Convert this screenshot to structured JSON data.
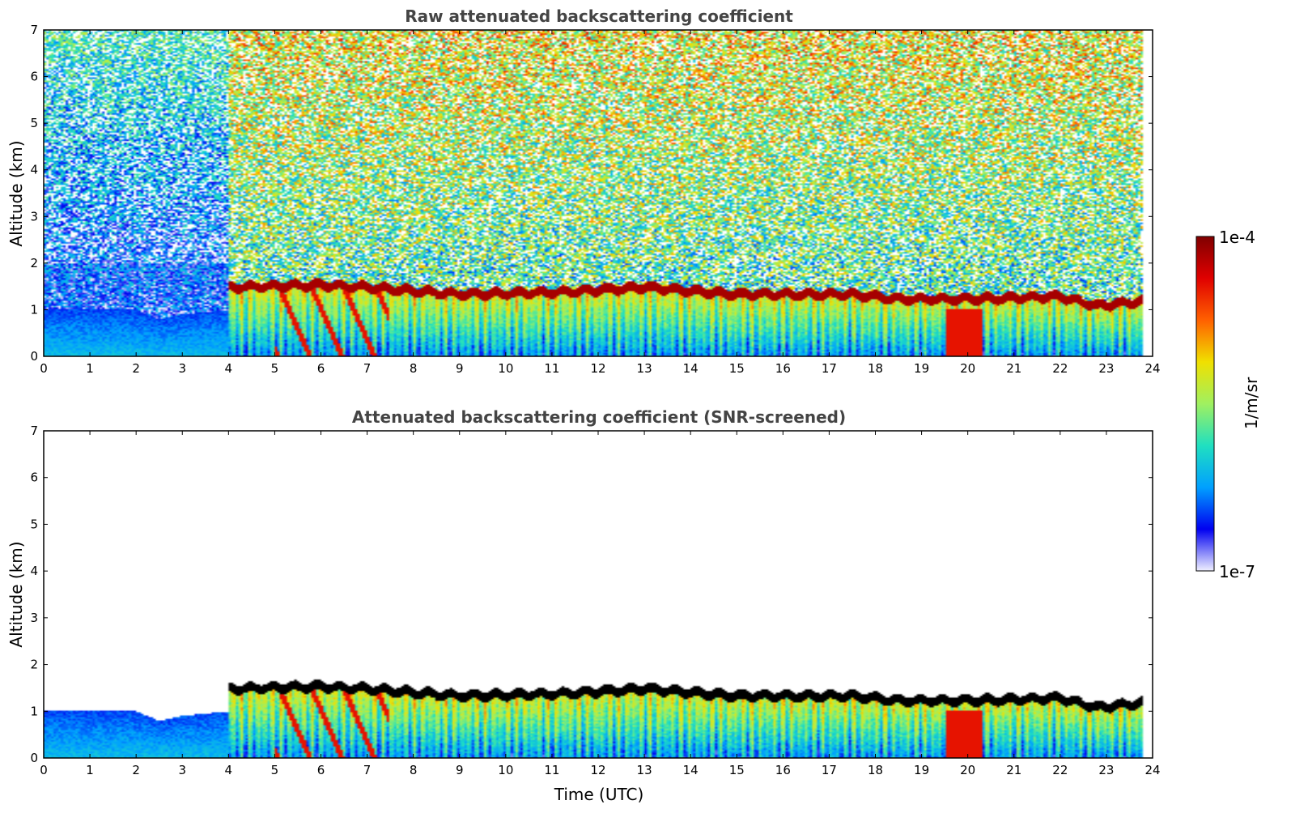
{
  "chart_data": [
    {
      "type": "heatmap",
      "title": "Raw attenuated backscattering coefficient",
      "xlabel": "",
      "ylabel": "Altitude (km)",
      "xlim": [
        0,
        24
      ],
      "ylim": [
        0,
        7
      ],
      "x_ticks": [
        "0",
        "1",
        "2",
        "3",
        "4",
        "5",
        "6",
        "7",
        "8",
        "9",
        "10",
        "11",
        "12",
        "13",
        "14",
        "15",
        "16",
        "17",
        "18",
        "19",
        "20",
        "21",
        "22",
        "23",
        "24"
      ],
      "y_ticks": [
        "0",
        "1",
        "2",
        "3",
        "4",
        "5",
        "6",
        "7"
      ],
      "screened": false,
      "cloud_top_km": [
        {
          "t": 4.0,
          "z": 1.5
        },
        {
          "t": 6.0,
          "z": 1.55
        },
        {
          "t": 7.0,
          "z": 1.5
        },
        {
          "t": 9.0,
          "z": 1.35
        },
        {
          "t": 11.3,
          "z": 1.4
        },
        {
          "t": 13.0,
          "z": 1.5
        },
        {
          "t": 15.0,
          "z": 1.35
        },
        {
          "t": 17.5,
          "z": 1.35
        },
        {
          "t": 18.5,
          "z": 1.25
        },
        {
          "t": 20.0,
          "z": 1.25
        },
        {
          "t": 22.0,
          "z": 1.3
        },
        {
          "t": 22.8,
          "z": 1.1
        },
        {
          "t": 23.8,
          "z": 1.2
        }
      ]
    },
    {
      "type": "heatmap",
      "title": "Attenuated backscattering coefficient (SNR-screened)",
      "xlabel": "Time (UTC)",
      "ylabel": "Altitude (km)",
      "xlim": [
        0,
        24
      ],
      "ylim": [
        0,
        7
      ],
      "x_ticks": [
        "0",
        "1",
        "2",
        "3",
        "4",
        "5",
        "6",
        "7",
        "8",
        "9",
        "10",
        "11",
        "12",
        "13",
        "14",
        "15",
        "16",
        "17",
        "18",
        "19",
        "20",
        "21",
        "22",
        "23",
        "24"
      ],
      "y_ticks": [
        "0",
        "1",
        "2",
        "3",
        "4",
        "5",
        "6",
        "7"
      ],
      "screened": true,
      "boundary_layer_top_km": [
        {
          "t": 0.0,
          "z": 1.0
        },
        {
          "t": 2.0,
          "z": 1.0
        },
        {
          "t": 2.5,
          "z": 0.8
        },
        {
          "t": 3.0,
          "z": 0.9
        },
        {
          "t": 4.0,
          "z": 1.0
        }
      ]
    }
  ],
  "colorbar": {
    "label": "1/m/sr",
    "max_label": "1e-4",
    "min_label": "1e-7",
    "scale": "log",
    "colors": [
      "#f0f0ff",
      "#0000f0",
      "#00a0ff",
      "#20e0c0",
      "#a0f060",
      "#f0e000",
      "#ff6000",
      "#e00000",
      "#800000"
    ]
  }
}
